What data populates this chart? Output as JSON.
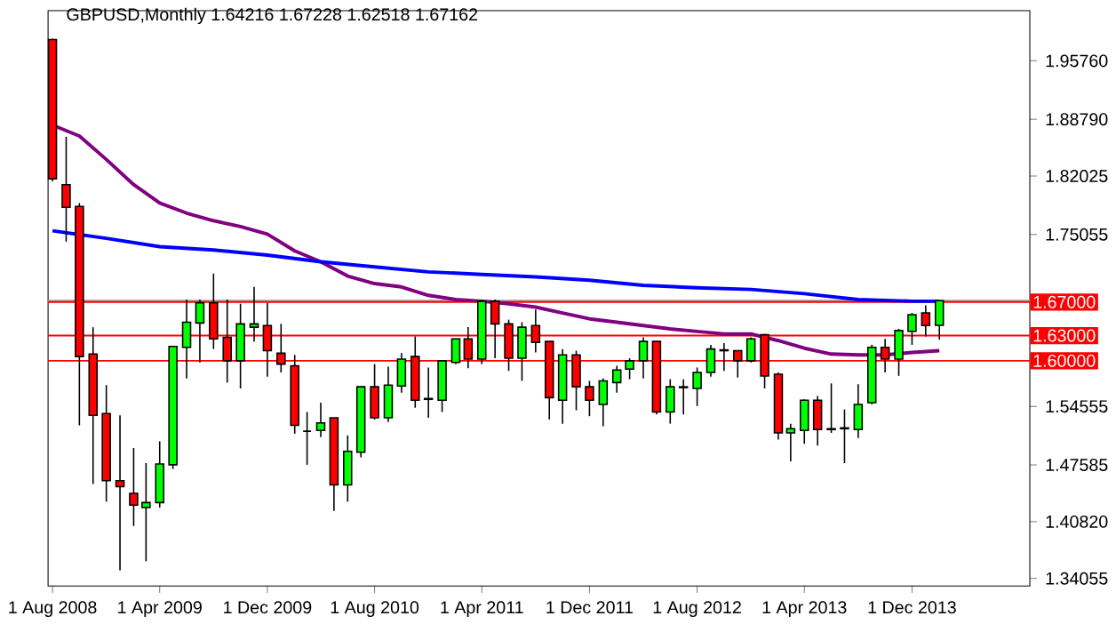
{
  "chart_data": {
    "type": "candlestick",
    "title": "GBPUSD,Monthly  1.64216 1.67228 1.62518 1.67162",
    "x": [
      "2008-08",
      "2008-09",
      "2008-10",
      "2008-11",
      "2008-12",
      "2009-01",
      "2009-02",
      "2009-03",
      "2009-04",
      "2009-05",
      "2009-06",
      "2009-07",
      "2009-08",
      "2009-09",
      "2009-10",
      "2009-11",
      "2009-12",
      "2010-01",
      "2010-02",
      "2010-03",
      "2010-04",
      "2010-05",
      "2010-06",
      "2010-07",
      "2010-08",
      "2010-09",
      "2010-10",
      "2010-11",
      "2010-12",
      "2011-01",
      "2011-02",
      "2011-03",
      "2011-04",
      "2011-05",
      "2011-06",
      "2011-07",
      "2011-08",
      "2011-09",
      "2011-10",
      "2011-11",
      "2011-12",
      "2012-01",
      "2012-02",
      "2012-03",
      "2012-04",
      "2012-05",
      "2012-06",
      "2012-07",
      "2012-08",
      "2012-09",
      "2012-10",
      "2012-11",
      "2012-12",
      "2013-01",
      "2013-02",
      "2013-03",
      "2013-04",
      "2013-05",
      "2013-06",
      "2013-07",
      "2013-08",
      "2013-09",
      "2013-10",
      "2013-11",
      "2013-12",
      "2014-01",
      "2014-02"
    ],
    "ohlc": [
      [
        1.983,
        1.984,
        1.814,
        1.817
      ],
      [
        1.81,
        1.867,
        1.742,
        1.783
      ],
      [
        1.784,
        1.788,
        1.523,
        1.605
      ],
      [
        1.608,
        1.64,
        1.453,
        1.535
      ],
      [
        1.537,
        1.571,
        1.432,
        1.457
      ],
      [
        1.457,
        1.535,
        1.35,
        1.45
      ],
      [
        1.442,
        1.496,
        1.403,
        1.428
      ],
      [
        1.425,
        1.478,
        1.361,
        1.431
      ],
      [
        1.431,
        1.504,
        1.425,
        1.477
      ],
      [
        1.476,
        1.617,
        1.471,
        1.617
      ],
      [
        1.616,
        1.673,
        1.579,
        1.646
      ],
      [
        1.645,
        1.673,
        1.598,
        1.669
      ],
      [
        1.669,
        1.704,
        1.614,
        1.626
      ],
      [
        1.628,
        1.673,
        1.574,
        1.6
      ],
      [
        1.6,
        1.668,
        1.567,
        1.644
      ],
      [
        1.64,
        1.688,
        1.623,
        1.644
      ],
      [
        1.642,
        1.669,
        1.581,
        1.612
      ],
      [
        1.609,
        1.644,
        1.586,
        1.596
      ],
      [
        1.594,
        1.607,
        1.513,
        1.523
      ],
      [
        1.516,
        1.539,
        1.476,
        1.516
      ],
      [
        1.517,
        1.55,
        1.509,
        1.526
      ],
      [
        1.532,
        1.532,
        1.421,
        1.452
      ],
      [
        1.452,
        1.511,
        1.432,
        1.492
      ],
      [
        1.491,
        1.569,
        1.485,
        1.569
      ],
      [
        1.569,
        1.596,
        1.53,
        1.532
      ],
      [
        1.532,
        1.593,
        1.527,
        1.571
      ],
      [
        1.57,
        1.609,
        1.562,
        1.602
      ],
      [
        1.605,
        1.629,
        1.544,
        1.553
      ],
      [
        1.555,
        1.592,
        1.532,
        1.554
      ],
      [
        1.553,
        1.6,
        1.539,
        1.6
      ],
      [
        1.598,
        1.626,
        1.596,
        1.626
      ],
      [
        1.626,
        1.64,
        1.591,
        1.602
      ],
      [
        1.602,
        1.673,
        1.596,
        1.671
      ],
      [
        1.671,
        1.673,
        1.603,
        1.644
      ],
      [
        1.644,
        1.649,
        1.588,
        1.603
      ],
      [
        1.603,
        1.646,
        1.576,
        1.64
      ],
      [
        1.642,
        1.661,
        1.61,
        1.622
      ],
      [
        1.623,
        1.623,
        1.53,
        1.556
      ],
      [
        1.553,
        1.614,
        1.525,
        1.607
      ],
      [
        1.607,
        1.612,
        1.541,
        1.569
      ],
      [
        1.569,
        1.576,
        1.534,
        1.553
      ],
      [
        1.548,
        1.579,
        1.522,
        1.576
      ],
      [
        1.574,
        1.594,
        1.562,
        1.589
      ],
      [
        1.59,
        1.603,
        1.578,
        1.6
      ],
      [
        1.6,
        1.628,
        1.579,
        1.623
      ],
      [
        1.623,
        1.623,
        1.536,
        1.539
      ],
      [
        1.539,
        1.578,
        1.525,
        1.569
      ],
      [
        1.568,
        1.578,
        1.536,
        1.569
      ],
      [
        1.567,
        1.592,
        1.546,
        1.586
      ],
      [
        1.586,
        1.619,
        1.581,
        1.614
      ],
      [
        1.612,
        1.621,
        1.588,
        1.613
      ],
      [
        1.612,
        1.612,
        1.58,
        1.6
      ],
      [
        1.6,
        1.628,
        1.598,
        1.626
      ],
      [
        1.631,
        1.632,
        1.567,
        1.582
      ],
      [
        1.584,
        1.586,
        1.506,
        1.514
      ],
      [
        1.514,
        1.525,
        1.48,
        1.519
      ],
      [
        1.517,
        1.554,
        1.501,
        1.553
      ],
      [
        1.553,
        1.558,
        1.499,
        1.518
      ],
      [
        1.518,
        1.573,
        1.514,
        1.519
      ],
      [
        1.519,
        1.542,
        1.478,
        1.52
      ],
      [
        1.518,
        1.572,
        1.508,
        1.548
      ],
      [
        1.55,
        1.619,
        1.548,
        1.616
      ],
      [
        1.616,
        1.626,
        1.586,
        1.602
      ],
      [
        1.602,
        1.638,
        1.582,
        1.636
      ],
      [
        1.635,
        1.657,
        1.619,
        1.655
      ],
      [
        1.657,
        1.666,
        1.629,
        1.642
      ],
      [
        1.64216,
        1.67228,
        1.62518,
        1.67162
      ]
    ],
    "colors": [
      "#ff0000",
      "#ff0000",
      "#ff0000",
      "#ff0000",
      "#ff0000",
      "#ff0000",
      "#ff0000",
      "#00ff00",
      "#00ff00",
      "#00ff00",
      "#00ff00",
      "#00ff00",
      "#ff0000",
      "#ff0000",
      "#00ff00",
      "#00ff00",
      "#ff0000",
      "#ff0000",
      "#ff0000",
      "#000000",
      "#00ff00",
      "#ff0000",
      "#00ff00",
      "#00ff00",
      "#ff0000",
      "#00ff00",
      "#00ff00",
      "#ff0000",
      "#ff0000",
      "#00ff00",
      "#00ff00",
      "#ff0000",
      "#00ff00",
      "#ff0000",
      "#ff0000",
      "#00ff00",
      "#ff0000",
      "#ff0000",
      "#00ff00",
      "#ff0000",
      "#ff0000",
      "#00ff00",
      "#00ff00",
      "#00ff00",
      "#00ff00",
      "#ff0000",
      "#00ff00",
      "#00ff00",
      "#00ff00",
      "#00ff00",
      "#00ff00",
      "#ff0000",
      "#00ff00",
      "#ff0000",
      "#ff0000",
      "#00ff00",
      "#00ff00",
      "#ff0000",
      "#00ff00",
      "#00ff00",
      "#00ff00",
      "#00ff00",
      "#ff0000",
      "#00ff00",
      "#00ff00",
      "#ff0000",
      "#00ff00"
    ],
    "series": [
      {
        "type": "line",
        "color": "#800080",
        "x": [
          "2008-08",
          "2008-10",
          "2008-12",
          "2009-02",
          "2009-04",
          "2009-06",
          "2009-08",
          "2009-10",
          "2009-12",
          "2010-02",
          "2010-04",
          "2010-06",
          "2010-08",
          "2010-10",
          "2010-12",
          "2011-02",
          "2011-04",
          "2011-06",
          "2011-08",
          "2011-10",
          "2011-12",
          "2012-02",
          "2012-04",
          "2012-06",
          "2012-08",
          "2012-10",
          "2012-12",
          "2013-02",
          "2013-04",
          "2013-06",
          "2013-08",
          "2013-10",
          "2013-12",
          "2014-02"
        ],
        "values": [
          1.881,
          1.868,
          1.84,
          1.81,
          1.788,
          1.776,
          1.767,
          1.76,
          1.751,
          1.731,
          1.718,
          1.701,
          1.692,
          1.688,
          1.678,
          1.673,
          1.671,
          1.668,
          1.664,
          1.657,
          1.65,
          1.646,
          1.642,
          1.638,
          1.635,
          1.632,
          1.632,
          1.624,
          1.615,
          1.608,
          1.607,
          1.607,
          1.61,
          1.612
        ]
      },
      {
        "type": "line",
        "color": "#0000ff",
        "x": [
          "2008-08",
          "2008-12",
          "2009-04",
          "2009-08",
          "2009-12",
          "2010-04",
          "2010-08",
          "2010-12",
          "2011-04",
          "2011-08",
          "2011-12",
          "2012-04",
          "2012-08",
          "2012-12",
          "2013-04",
          "2013-08",
          "2013-12",
          "2014-02"
        ],
        "values": [
          1.755,
          1.746,
          1.736,
          1.732,
          1.726,
          1.718,
          1.712,
          1.706,
          1.703,
          1.7,
          1.696,
          1.69,
          1.687,
          1.685,
          1.68,
          1.673,
          1.671,
          1.671
        ]
      }
    ],
    "xlim": [
      "2008-07-22",
      "2014-08-25"
    ],
    "ylim": [
      1.3316,
      2.0174
    ],
    "xticks": [
      {
        "value": "2008-08-01",
        "label": "1 Aug 2008"
      },
      {
        "value": "2009-04-01",
        "label": "1 Apr 2009"
      },
      {
        "value": "2009-12-01",
        "label": "1 Dec 2009"
      },
      {
        "value": "2010-08-01",
        "label": "1 Aug 2010"
      },
      {
        "value": "2011-04-01",
        "label": "1 Apr 2011"
      },
      {
        "value": "2011-12-01",
        "label": "1 Dec 2011"
      },
      {
        "value": "2012-08-01",
        "label": "1 Aug 2012"
      },
      {
        "value": "2013-04-01",
        "label": "1 Apr 2013"
      },
      {
        "value": "2013-12-01",
        "label": "1 Dec 2013"
      }
    ],
    "yticks": [
      {
        "value": 1.9576,
        "label": "1.95760"
      },
      {
        "value": 1.8879,
        "label": "1.88790"
      },
      1.82025,
      1.75055,
      1.54555,
      1.47585,
      {
        "value": 1.4082,
        "label": "1.40820"
      },
      1.34055
    ],
    "ref_lines": [
      {
        "axis": "y",
        "value": 1.67162,
        "color": "#a0a0a0"
      },
      {
        "axis": "y",
        "value": 1.67,
        "label": "1.67000",
        "color": "#ff0000"
      },
      {
        "axis": "y",
        "value": 1.63,
        "label": "1.63000",
        "color": "#ff0000"
      },
      {
        "axis": "y",
        "value": 1.6,
        "label": "1.60000",
        "color": "#ff0000"
      }
    ]
  }
}
